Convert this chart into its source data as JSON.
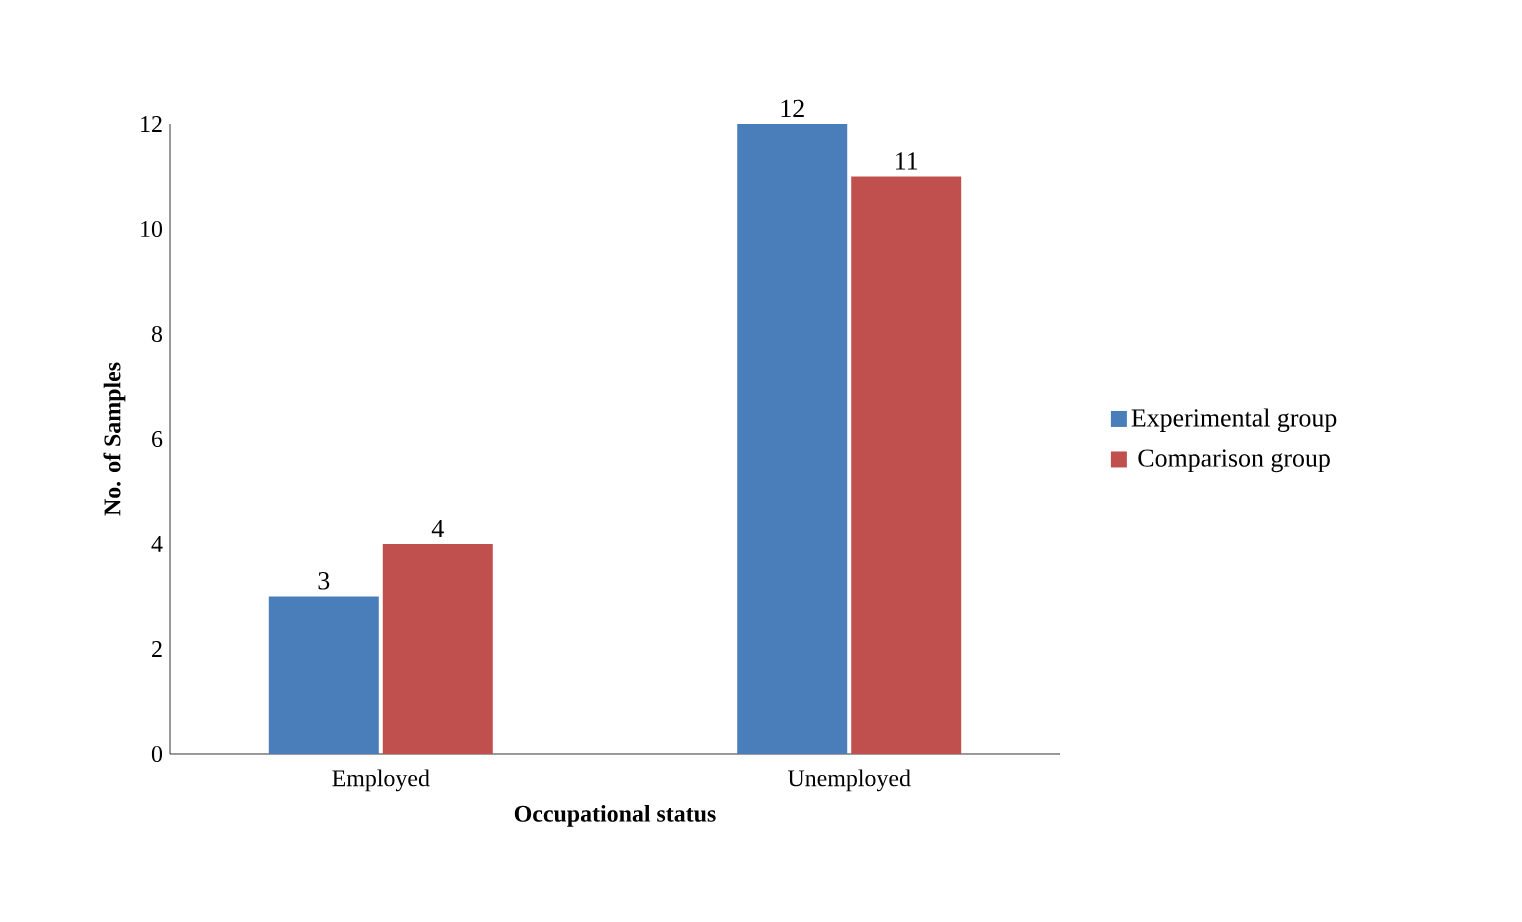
{
  "chart_data": {
    "type": "bar",
    "xlabel": "Occupational status",
    "ylabel": "No. of Samples",
    "categories": [
      "Employed",
      "Unemployed"
    ],
    "series": [
      {
        "name": "Experimental group",
        "color": "#4a7ebb",
        "values": [
          3,
          12
        ]
      },
      {
        "name": "Comparison group",
        "color": "#c0504d",
        "values": [
          4,
          11
        ]
      }
    ],
    "ylim": [
      0,
      12
    ],
    "yticks": [
      0,
      2,
      4,
      6,
      8,
      10,
      12
    ],
    "data_labels": true,
    "legend": "right",
    "grid": false
  }
}
